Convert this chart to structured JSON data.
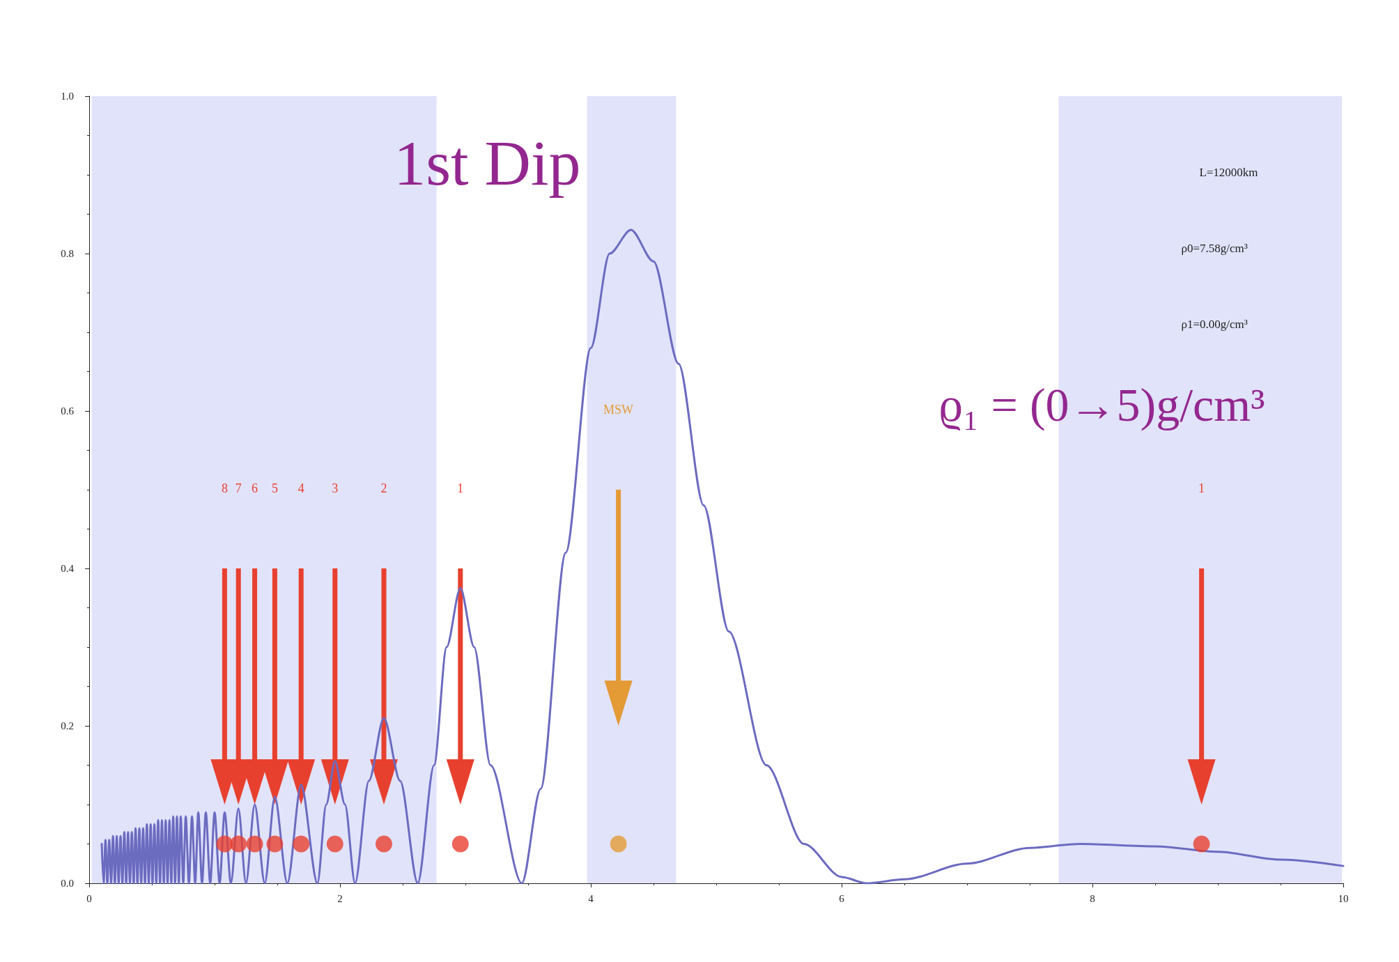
{
  "chart_data": {
    "type": "line",
    "xlim": [
      0,
      10
    ],
    "xticks": [
      0,
      2,
      4,
      6,
      8,
      10
    ],
    "ylim": [
      0,
      1
    ],
    "yticks": [
      {
        "value": 0,
        "label": "0.0"
      },
      {
        "value": 0.2,
        "label": "0.2"
      },
      {
        "value": 0.4,
        "label": "0.4"
      },
      {
        "value": 0.6,
        "label": "0.6"
      },
      {
        "value": 0.8,
        "label": "0.8"
      },
      {
        "value": 1,
        "label": "1.0"
      }
    ],
    "grid": false,
    "series": [
      {
        "color": "#6b6bc0",
        "x": [
          0.1,
          0.115,
          0.13,
          0.145,
          0.16,
          0.175,
          0.19,
          0.205,
          0.22,
          0.235,
          0.25,
          0.265,
          0.28,
          0.295,
          0.31,
          0.325,
          0.34,
          0.355,
          0.37,
          0.385,
          0.4,
          0.415,
          0.43,
          0.445,
          0.46,
          0.475,
          0.49,
          0.505,
          0.52,
          0.535,
          0.55,
          0.565,
          0.58,
          0.595,
          0.61,
          0.625,
          0.64,
          0.655,
          0.67,
          0.685,
          0.7,
          0.715,
          0.73,
          0.75,
          0.77,
          0.795,
          0.82,
          0.845,
          0.87,
          0.9,
          0.93,
          0.965,
          1.0,
          1.04,
          1.08,
          1.13,
          1.19,
          1.25,
          1.32,
          1.4,
          1.48,
          1.58,
          1.69,
          1.82,
          1.89,
          1.96,
          2.04,
          2.12,
          2.23,
          2.35,
          2.48,
          2.62,
          2.75,
          2.85,
          2.96,
          3.07,
          3.2,
          3.45,
          3.6,
          3.8,
          4.0,
          4.15,
          4.32,
          4.5,
          4.7,
          4.9,
          5.1,
          5.4,
          5.7,
          6.0,
          6.2,
          6.5,
          7.0,
          7.5,
          7.9,
          8.5,
          9.0,
          9.5,
          10.0
        ],
        "values": [
          0.05,
          0,
          0.055,
          0,
          0.055,
          0,
          0.06,
          0,
          0.06,
          0,
          0.06,
          0,
          0.065,
          0,
          0.065,
          0,
          0.065,
          0,
          0.07,
          0,
          0.07,
          0,
          0.07,
          0,
          0.075,
          0,
          0.075,
          0,
          0.075,
          0,
          0.08,
          0,
          0.08,
          0,
          0.08,
          0,
          0.08,
          0,
          0.085,
          0,
          0.085,
          0,
          0.085,
          0,
          0.085,
          0,
          0.085,
          0,
          0.09,
          0,
          0.09,
          0,
          0.09,
          0,
          0.09,
          0,
          0.095,
          0,
          0.1,
          0,
          0.11,
          0,
          0.125,
          0,
          0.1,
          0.155,
          0.1,
          0,
          0.13,
          0.21,
          0.13,
          0,
          0.15,
          0.3,
          0.375,
          0.3,
          0.15,
          0,
          0.12,
          0.42,
          0.68,
          0.8,
          0.83,
          0.79,
          0.66,
          0.48,
          0.32,
          0.15,
          0.05,
          0.008,
          0,
          0.005,
          0.025,
          0.045,
          0.05,
          0.047,
          0.04,
          0.03,
          0.022
        ]
      },
      {
        "type": "scatter",
        "x": [
          1.08,
          1.19,
          1.32,
          1.48,
          1.69,
          1.96,
          2.35,
          2.96,
          4.22,
          8.87
        ],
        "values": [
          0.05,
          0.05,
          0.05,
          0.05,
          0.05,
          0.05,
          0.05,
          0.05,
          0.05,
          0.05
        ],
        "colors": [
          "#e8402f",
          "#e8402f",
          "#e8402f",
          "#e8402f",
          "#e8402f",
          "#e8402f",
          "#e8402f",
          "#e8402f",
          "#e49a35",
          "#e8402f"
        ]
      }
    ],
    "bands": [
      {
        "axis": "x",
        "from": 0.02,
        "to": 2.77,
        "color": "#e1e3fb"
      },
      {
        "axis": "x",
        "from": 3.97,
        "to": 4.68,
        "color": "#e1e3fb"
      },
      {
        "axis": "x",
        "from": 7.73,
        "to": 9.99,
        "color": "#e1e3fb"
      }
    ],
    "annotations": [
      "1st Dip",
      "L=12000km",
      "ρ0=7.58g/cm³",
      "ρ1=0.00g/cm³",
      "ϱ₁ = (0→5)g/cm³",
      "8",
      "7",
      "6",
      "5",
      "4",
      "3",
      "2",
      "1",
      "MSW",
      "1"
    ]
  }
}
